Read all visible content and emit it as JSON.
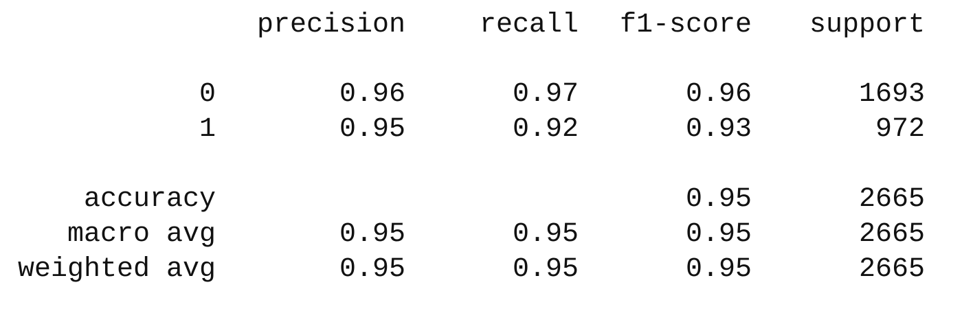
{
  "report": {
    "header": {
      "precision": "precision",
      "recall": "recall",
      "f1_score": "f1-score",
      "support": "support"
    },
    "class_rows": [
      {
        "label": "0",
        "precision": "0.96",
        "recall": "0.97",
        "f1_score": "0.96",
        "support": "1693"
      },
      {
        "label": "1",
        "precision": "0.95",
        "recall": "0.92",
        "f1_score": "0.93",
        "support": "972"
      }
    ],
    "summary_rows": [
      {
        "label": "accuracy",
        "precision": "",
        "recall": "",
        "f1_score": "0.95",
        "support": "2665"
      },
      {
        "label": "macro avg",
        "precision": "0.95",
        "recall": "0.95",
        "f1_score": "0.95",
        "support": "2665"
      },
      {
        "label": "weighted avg",
        "precision": "0.95",
        "recall": "0.95",
        "f1_score": "0.95",
        "support": "2665"
      }
    ]
  }
}
